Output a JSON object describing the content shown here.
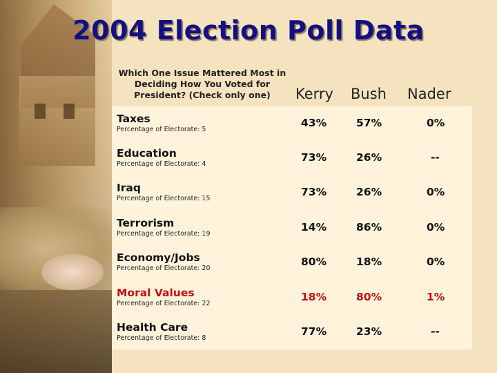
{
  "title": "2004 Election Poll Data",
  "question": "Which One Issue Mattered Most in Deciding How You Voted for President? (Check only one)",
  "columns": [
    "Kerry",
    "Bush",
    "Nader"
  ],
  "rows": [
    {
      "issue": "Taxes",
      "share": "Percentage of Electorate: 5",
      "kerry": "43%",
      "bush": "57%",
      "nader": "0%"
    },
    {
      "issue": "Education",
      "share": "Percentage of Electorate: 4",
      "kerry": "73%",
      "bush": "26%",
      "nader": "--"
    },
    {
      "issue": "Iraq",
      "share": "Percentage of Electorate: 15",
      "kerry": "73%",
      "bush": "26%",
      "nader": "0%"
    },
    {
      "issue": "Terrorism",
      "share": "Percentage of Electorate: 19",
      "kerry": "14%",
      "bush": "86%",
      "nader": "0%"
    },
    {
      "issue": "Economy/Jobs",
      "share": "Percentage of Electorate: 20",
      "kerry": "80%",
      "bush": "18%",
      "nader": "0%"
    },
    {
      "issue": "Moral Values",
      "share": "Percentage of Electorate: 22",
      "kerry": "18%",
      "bush": "80%",
      "nader": "1%"
    },
    {
      "issue": "Health Care",
      "share": "Percentage of Electorate: 8",
      "kerry": "77%",
      "bush": "23%",
      "nader": "--"
    }
  ],
  "colors": {
    "title": "#141080",
    "highlight": "#c81010",
    "background": "#f5e3bf",
    "panel": "#fff3dc"
  }
}
